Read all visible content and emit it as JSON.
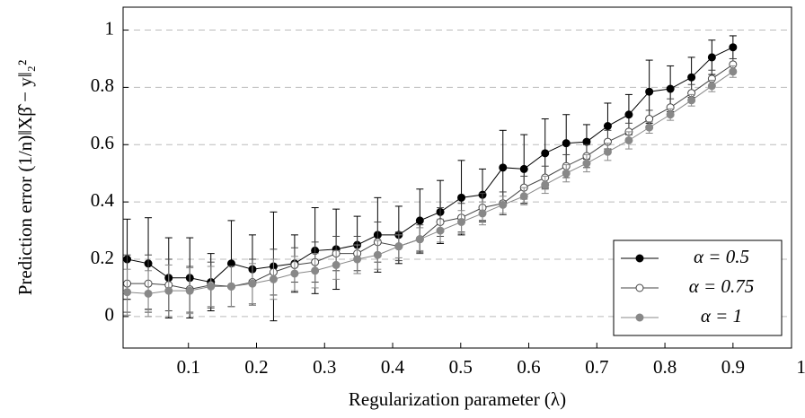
{
  "chart_data": {
    "type": "line",
    "x_label": "Regularization parameter (λ)",
    "y_label": "Prediction error (1/n)‖Xβ̂ − y‖₂²",
    "x": [
      0.01,
      0.041,
      0.071,
      0.102,
      0.133,
      0.163,
      0.194,
      0.225,
      0.256,
      0.286,
      0.317,
      0.348,
      0.378,
      0.409,
      0.44,
      0.47,
      0.501,
      0.532,
      0.562,
      0.593,
      0.624,
      0.655,
      0.685,
      0.716,
      0.747,
      0.777,
      0.808,
      0.839,
      0.869,
      0.9
    ],
    "series": [
      {
        "name": "α = 0.5",
        "color": "#000000",
        "marker": "filled",
        "values": [
          0.2,
          0.185,
          0.135,
          0.135,
          0.12,
          0.185,
          0.165,
          0.175,
          0.185,
          0.23,
          0.235,
          0.25,
          0.285,
          0.285,
          0.335,
          0.365,
          0.415,
          0.425,
          0.52,
          0.515,
          0.57,
          0.605,
          0.61,
          0.665,
          0.705,
          0.785,
          0.795,
          0.835,
          0.905,
          0.94
        ],
        "errors": [
          0.14,
          0.16,
          0.14,
          0.14,
          0.1,
          0.15,
          0.12,
          0.19,
          0.1,
          0.15,
          0.14,
          0.1,
          0.13,
          0.1,
          0.11,
          0.11,
          0.13,
          0.09,
          0.13,
          0.12,
          0.12,
          0.1,
          0.06,
          0.08,
          0.07,
          0.11,
          0.08,
          0.07,
          0.06,
          0.04
        ]
      },
      {
        "name": "α = 0.75",
        "color": "#444444",
        "marker": "open",
        "values": [
          0.115,
          0.115,
          0.11,
          0.095,
          0.11,
          0.105,
          0.12,
          0.155,
          0.18,
          0.19,
          0.22,
          0.22,
          0.26,
          0.245,
          0.27,
          0.33,
          0.345,
          0.38,
          0.395,
          0.45,
          0.485,
          0.525,
          0.56,
          0.61,
          0.645,
          0.69,
          0.73,
          0.78,
          0.83,
          0.88
        ],
        "errors": [
          0.1,
          0.1,
          0.09,
          0.08,
          0.08,
          0.07,
          0.08,
          0.08,
          0.06,
          0.07,
          0.06,
          0.06,
          0.07,
          0.05,
          0.05,
          0.05,
          0.05,
          0.05,
          0.04,
          0.04,
          0.04,
          0.04,
          0.04,
          0.04,
          0.03,
          0.03,
          0.03,
          0.03,
          0.03,
          0.02
        ]
      },
      {
        "name": "α = 1",
        "color": "#888888",
        "marker": "filled",
        "values": [
          0.085,
          0.08,
          0.09,
          0.09,
          0.105,
          0.105,
          0.115,
          0.13,
          0.15,
          0.16,
          0.18,
          0.2,
          0.215,
          0.245,
          0.27,
          0.3,
          0.33,
          0.36,
          0.39,
          0.42,
          0.46,
          0.5,
          0.535,
          0.575,
          0.615,
          0.66,
          0.705,
          0.755,
          0.805,
          0.855
        ],
        "errors": [
          0.08,
          0.08,
          0.09,
          0.08,
          0.07,
          0.07,
          0.07,
          0.07,
          0.06,
          0.06,
          0.05,
          0.05,
          0.05,
          0.04,
          0.04,
          0.04,
          0.04,
          0.04,
          0.03,
          0.03,
          0.03,
          0.03,
          0.03,
          0.03,
          0.03,
          0.02,
          0.02,
          0.02,
          0.02,
          0.02
        ]
      }
    ],
    "xlim": [
      0.004,
      0.986
    ],
    "ylim": [
      -0.11,
      1.08
    ],
    "xticks": [
      0.1,
      0.2,
      0.3,
      0.4,
      0.5,
      0.6,
      0.7,
      0.8,
      0.9,
      1
    ],
    "yticks": [
      0,
      0.2,
      0.4,
      0.6,
      0.8,
      1
    ],
    "grid": true,
    "legend": "lower right"
  }
}
